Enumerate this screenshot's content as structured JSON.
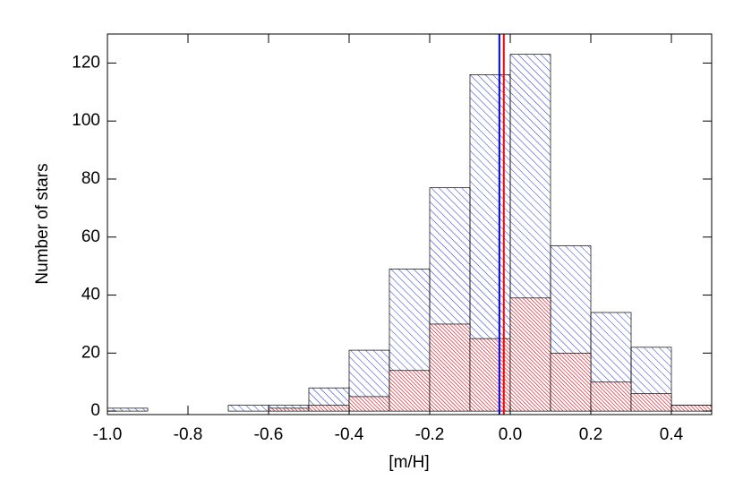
{
  "chart_data": {
    "type": "histogram",
    "xlabel": "[m/H]",
    "ylabel": "Number of stars",
    "bins": [
      -1.0,
      -0.9,
      -0.8,
      -0.7,
      -0.6,
      -0.5,
      -0.4,
      -0.3,
      -0.2,
      -0.1,
      0.0,
      0.1,
      0.2,
      0.3,
      0.4,
      0.5
    ],
    "series": [
      {
        "color": "#2233cc",
        "values": [
          1,
          0,
          0,
          2,
          2,
          8,
          21,
          49,
          77,
          116,
          123,
          57,
          34,
          22,
          2
        ]
      },
      {
        "color": "#cc0011",
        "values": [
          0,
          0,
          0,
          0,
          1,
          2,
          5,
          14,
          30,
          25,
          39,
          20,
          10,
          6,
          2
        ]
      }
    ],
    "vlines": [
      {
        "value": -0.027,
        "color": "#0000ff"
      },
      {
        "value": -0.016,
        "color": "#ff0000"
      }
    ],
    "xlim": [
      -1.0,
      0.5
    ],
    "xticks": [
      {
        "value": -1.0,
        "label": "-1.0"
      },
      -0.8,
      -0.6,
      -0.4,
      -0.2,
      {
        "value": 0.0,
        "label": "0.0"
      },
      0.2,
      0.4
    ],
    "ylim": [
      -1.2,
      130
    ],
    "yticks": [
      0,
      20,
      40,
      60,
      80,
      100,
      120
    ]
  }
}
